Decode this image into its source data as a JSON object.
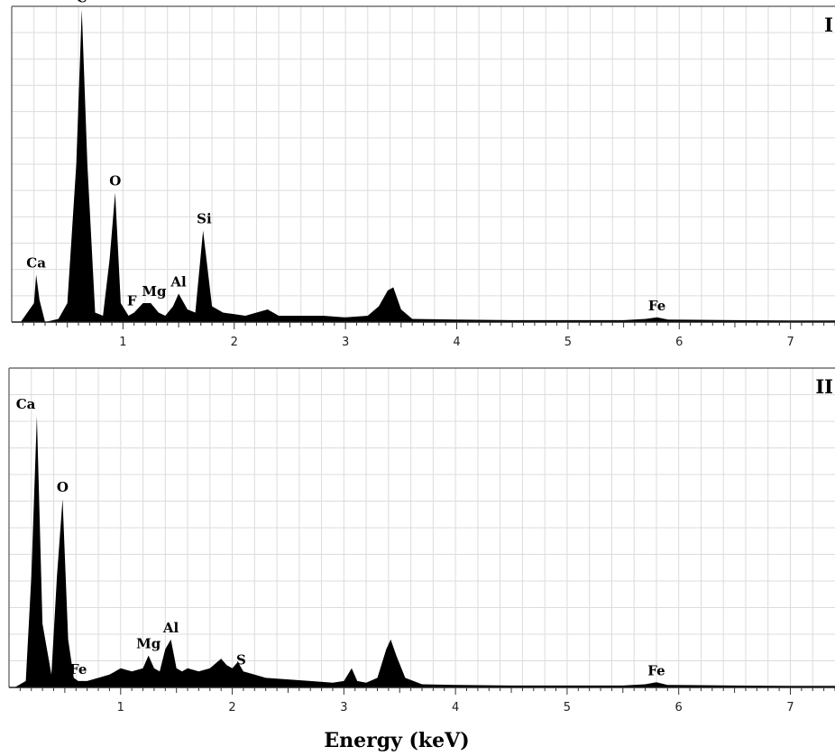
{
  "chart_data": [
    {
      "type": "area",
      "panel_label": "I",
      "xlim": [
        0,
        7.4
      ],
      "ylim": [
        0,
        1
      ],
      "x_ticks": [
        1,
        2,
        3,
        4,
        5,
        6,
        7
      ],
      "grid": true,
      "y_tick_labels": false,
      "series": [
        {
          "x": [
            0.08,
            0.2,
            0.22,
            0.25,
            0.3,
            0.42,
            0.5,
            0.58,
            0.63,
            0.68,
            0.75,
            0.82,
            0.88,
            0.93,
            0.98,
            1.05,
            1.1,
            1.18,
            1.25,
            1.32,
            1.38,
            1.45,
            1.5,
            1.58,
            1.65,
            1.72,
            1.8,
            1.9,
            2.1,
            2.2,
            2.3,
            2.4,
            2.6,
            2.8,
            3.0,
            3.2,
            3.3,
            3.38,
            3.43,
            3.5,
            3.6,
            4.0,
            4.5,
            5.0,
            5.5,
            5.7,
            5.8,
            5.9,
            6.5,
            7.0,
            7.4
          ],
          "y": [
            0.0,
            0.06,
            0.15,
            0.07,
            0.0,
            0.01,
            0.06,
            0.5,
            0.99,
            0.5,
            0.03,
            0.02,
            0.2,
            0.41,
            0.06,
            0.02,
            0.03,
            0.06,
            0.06,
            0.03,
            0.02,
            0.05,
            0.09,
            0.04,
            0.03,
            0.29,
            0.05,
            0.03,
            0.02,
            0.03,
            0.04,
            0.02,
            0.02,
            0.02,
            0.015,
            0.02,
            0.05,
            0.1,
            0.11,
            0.04,
            0.01,
            0.008,
            0.006,
            0.006,
            0.006,
            0.01,
            0.015,
            0.008,
            0.006,
            0.005,
            0.005
          ]
        }
      ],
      "annotations": [
        {
          "label": "C",
          "x": 0.63,
          "y": 0.99
        },
        {
          "label": "Ca",
          "x": 0.22,
          "y": 0.15
        },
        {
          "label": "O",
          "x": 0.93,
          "y": 0.41
        },
        {
          "label": "F",
          "x": 1.08,
          "y": 0.03
        },
        {
          "label": "Mg",
          "x": 1.28,
          "y": 0.06
        },
        {
          "label": "Al",
          "x": 1.5,
          "y": 0.09
        },
        {
          "label": "Si",
          "x": 1.73,
          "y": 0.29
        },
        {
          "label": "Fe",
          "x": 5.8,
          "y": 0.015
        }
      ]
    },
    {
      "type": "area",
      "panel_label": "II",
      "xlim": [
        0,
        7.4
      ],
      "ylim": [
        0,
        1
      ],
      "x_ticks": [
        1,
        2,
        3,
        4,
        5,
        6,
        7
      ],
      "grid": true,
      "y_tick_labels": false,
      "xlabel": "Energy (keV)",
      "series": [
        {
          "x": [
            0.05,
            0.15,
            0.2,
            0.25,
            0.3,
            0.38,
            0.43,
            0.48,
            0.53,
            0.58,
            0.62,
            0.7,
            0.8,
            0.9,
            1.0,
            1.1,
            1.2,
            1.25,
            1.3,
            1.35,
            1.4,
            1.45,
            1.5,
            1.55,
            1.6,
            1.7,
            1.8,
            1.9,
            1.95,
            2.0,
            2.05,
            2.1,
            2.2,
            2.3,
            2.5,
            2.7,
            2.9,
            3.0,
            3.07,
            3.12,
            3.2,
            3.3,
            3.38,
            3.42,
            3.47,
            3.55,
            3.7,
            4.0,
            4.5,
            5.0,
            5.5,
            5.7,
            5.8,
            5.9,
            6.5,
            7.0,
            7.4
          ],
          "y": [
            0.0,
            0.02,
            0.35,
            0.85,
            0.2,
            0.04,
            0.35,
            0.59,
            0.15,
            0.03,
            0.02,
            0.02,
            0.03,
            0.04,
            0.06,
            0.05,
            0.06,
            0.1,
            0.06,
            0.05,
            0.12,
            0.15,
            0.06,
            0.05,
            0.06,
            0.05,
            0.06,
            0.09,
            0.07,
            0.06,
            0.08,
            0.05,
            0.04,
            0.03,
            0.025,
            0.02,
            0.015,
            0.02,
            0.06,
            0.02,
            0.015,
            0.03,
            0.12,
            0.15,
            0.1,
            0.03,
            0.01,
            0.008,
            0.006,
            0.006,
            0.006,
            0.01,
            0.016,
            0.008,
            0.006,
            0.005,
            0.005
          ]
        }
      ],
      "annotations": [
        {
          "label": "Ca",
          "x": 0.15,
          "y": 0.85
        },
        {
          "label": "O",
          "x": 0.48,
          "y": 0.59
        },
        {
          "label": "Fe",
          "x": 0.62,
          "y": 0.02
        },
        {
          "label": "Mg",
          "x": 1.25,
          "y": 0.1
        },
        {
          "label": "Al",
          "x": 1.45,
          "y": 0.15
        },
        {
          "label": "S",
          "x": 2.08,
          "y": 0.05
        },
        {
          "label": "Fe",
          "x": 5.8,
          "y": 0.016
        }
      ]
    }
  ]
}
